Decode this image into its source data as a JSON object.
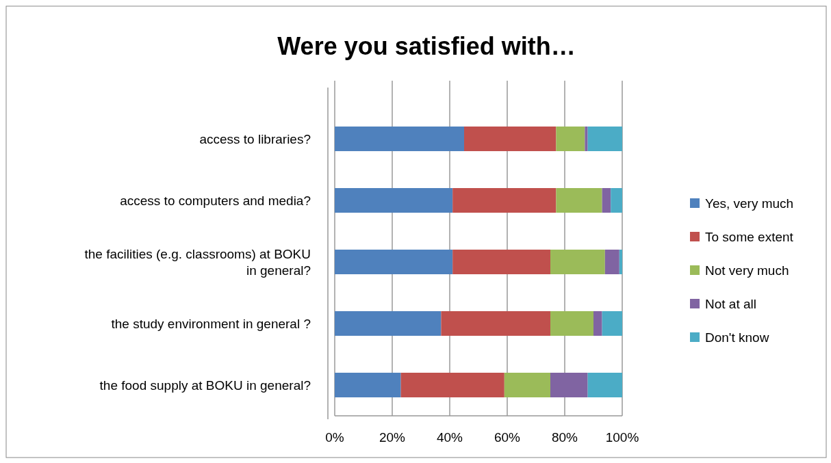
{
  "chart_data": {
    "type": "bar",
    "orientation": "horizontal",
    "stacked": true,
    "title": "Were you satisfied with…",
    "categories": [
      "access to libraries?",
      "access to computers and media?",
      "the facilities (e.g. classrooms) at BOKU in general?",
      "the study environment in general ?",
      "the food supply at BOKU in general?"
    ],
    "series": [
      {
        "name": "Yes, very much",
        "color": "#4f81bd",
        "values": [
          45,
          41,
          41,
          37,
          23
        ]
      },
      {
        "name": "To some extent",
        "color": "#c0504d",
        "values": [
          32,
          36,
          34,
          38,
          36
        ]
      },
      {
        "name": "Not very much",
        "color": "#9bbb59",
        "values": [
          10,
          16,
          19,
          15,
          16
        ]
      },
      {
        "name": "Not at all",
        "color": "#8064a2",
        "values": [
          1,
          3,
          5,
          3,
          13
        ]
      },
      {
        "name": "Don't know",
        "color": "#4bacc6",
        "values": [
          12,
          4,
          1,
          7,
          12
        ]
      }
    ],
    "xlim": [
      0,
      100
    ],
    "xticks": [
      {
        "value": 0,
        "label": "0%"
      },
      {
        "value": 20,
        "label": "20%"
      },
      {
        "value": 40,
        "label": "40%"
      },
      {
        "value": 60,
        "label": "60%"
      },
      {
        "value": 80,
        "label": "80%"
      },
      {
        "value": 100,
        "label": "100%"
      }
    ],
    "grid": "x",
    "legend": "right"
  }
}
